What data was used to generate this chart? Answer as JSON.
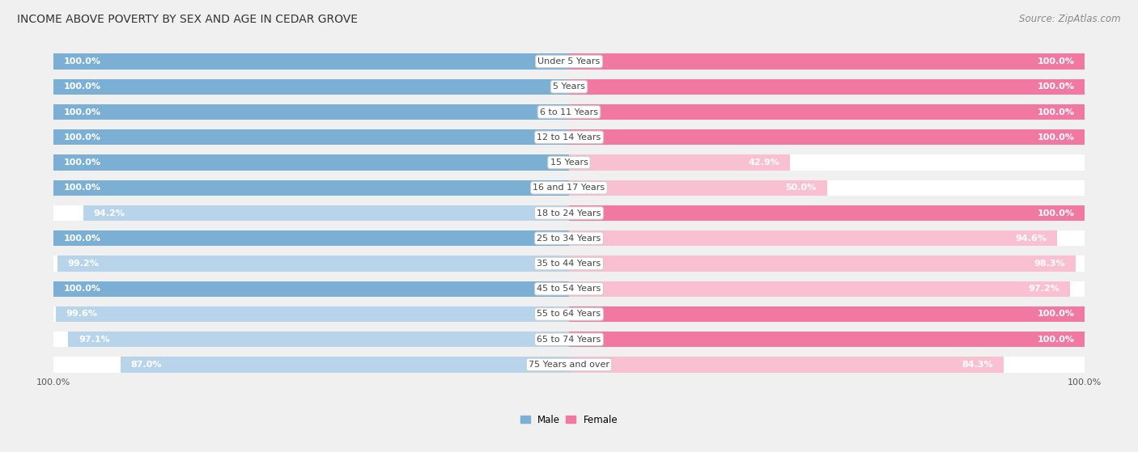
{
  "title": "INCOME ABOVE POVERTY BY SEX AND AGE IN CEDAR GROVE",
  "source": "Source: ZipAtlas.com",
  "categories": [
    "Under 5 Years",
    "5 Years",
    "6 to 11 Years",
    "12 to 14 Years",
    "15 Years",
    "16 and 17 Years",
    "18 to 24 Years",
    "25 to 34 Years",
    "35 to 44 Years",
    "45 to 54 Years",
    "55 to 64 Years",
    "65 to 74 Years",
    "75 Years and over"
  ],
  "male": [
    100.0,
    100.0,
    100.0,
    100.0,
    100.0,
    100.0,
    94.2,
    100.0,
    99.2,
    100.0,
    99.6,
    97.1,
    87.0
  ],
  "female": [
    100.0,
    100.0,
    100.0,
    100.0,
    42.9,
    50.0,
    100.0,
    94.6,
    98.3,
    97.2,
    100.0,
    100.0,
    84.3
  ],
  "male_color": "#7bafd4",
  "female_color": "#f178a0",
  "male_color_light": "#b8d4ea",
  "female_color_light": "#f8c0d0",
  "bar_bg_color": "#e8e8e8",
  "background_color": "#f0f0f0",
  "title_fontsize": 10,
  "source_fontsize": 8.5,
  "label_fontsize": 8,
  "category_fontsize": 8,
  "axis_label_fontsize": 8,
  "legend_male": "Male",
  "legend_female": "Female",
  "max_val": 100.0
}
